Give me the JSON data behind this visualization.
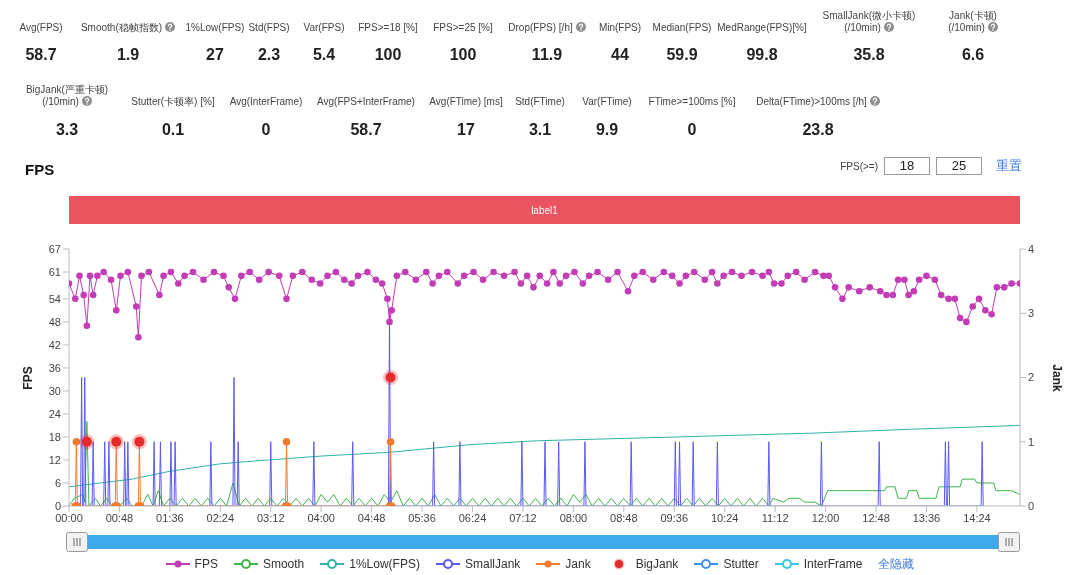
{
  "chart_data": [
    {
      "type": "other",
      "categories": [
        "Avg(FPS)",
        "Smooth(稳帧指数)",
        "1%Low(FPS)",
        "Std(FPS)",
        "Var(FPS)",
        "FPS>=18 [%]",
        "FPS>=25 [%]",
        "Drop(FPS) [/h]",
        "Min(FPS)",
        "Median(FPS)",
        "MedRange(FPS)[%]",
        "SmallJank(微小卡顿)\n(/10min)",
        "Jank(卡顿)\n(/10min)",
        "BigJank(严重卡顿)\n(/10min)",
        "Stutter(卡顿率) [%]",
        "Avg(InterFrame)",
        "Avg(FPS+InterFrame)",
        "Avg(FTime) [ms]",
        "Std(FTime)",
        "Var(FTime)",
        "FTime>=100ms [%]",
        "Delta(FTime)>100ms [/h]"
      ],
      "values": [
        58.7,
        1.9,
        27,
        2.3,
        5.4,
        100,
        100,
        11.9,
        44,
        59.9,
        99.8,
        35.8,
        6.6,
        3.3,
        0.1,
        0,
        58.7,
        17,
        3.1,
        9.9,
        0,
        23.8
      ],
      "data_labels": true
    },
    {
      "type": "line",
      "title": "FPS",
      "ylabel": "FPS",
      "y2label": "Jank",
      "xlim": [
        0,
        905
      ],
      "xticks": [
        {
          "value": 0,
          "label": "00:00"
        },
        {
          "value": 48,
          "label": "00:48"
        },
        {
          "value": 96,
          "label": "01:36"
        },
        {
          "value": 144,
          "label": "02:24"
        },
        {
          "value": 192,
          "label": "03:12"
        },
        {
          "value": 240,
          "label": "04:00"
        },
        {
          "value": 288,
          "label": "04:48"
        },
        {
          "value": 336,
          "label": "05:36"
        },
        {
          "value": 384,
          "label": "06:24"
        },
        {
          "value": 432,
          "label": "07:12"
        },
        {
          "value": 480,
          "label": "08:00"
        },
        {
          "value": 528,
          "label": "08:48"
        },
        {
          "value": 576,
          "label": "09:36"
        },
        {
          "value": 624,
          "label": "10:24"
        },
        {
          "value": 672,
          "label": "11:12"
        },
        {
          "value": 720,
          "label": "12:00"
        },
        {
          "value": 768,
          "label": "12:48"
        },
        {
          "value": 816,
          "label": "13:36"
        },
        {
          "value": 864,
          "label": "14:24"
        }
      ],
      "ylim": [
        0,
        67
      ],
      "yticks": [
        0,
        6,
        12,
        18,
        24,
        30,
        36,
        42,
        48,
        54,
        61,
        67
      ],
      "y2lim": [
        0,
        4
      ],
      "y2ticks": [
        0,
        1,
        2,
        3,
        4
      ],
      "legend": "bottom",
      "annotations": [
        "FPS(>=)",
        "18",
        "25",
        "重置",
        "label1",
        "全隐藏"
      ],
      "series": [
        {
          "name": "FPS",
          "color": "#c23cb6",
          "marker": "circle",
          "x": [
            0,
            6,
            10,
            14,
            17,
            20,
            23,
            27,
            33,
            40,
            45,
            49,
            56,
            64,
            66,
            69,
            76,
            86,
            90,
            97,
            104,
            110,
            118,
            128,
            138,
            147,
            152,
            158,
            164,
            172,
            181,
            190,
            200,
            207,
            213,
            222,
            231,
            239,
            246,
            254,
            262,
            269,
            275,
            284,
            292,
            298,
            303,
            305,
            307,
            312,
            320,
            330,
            340,
            346,
            352,
            360,
            370,
            376,
            385,
            394,
            404,
            414,
            424,
            430,
            436,
            442,
            448,
            455,
            461,
            467,
            473,
            481,
            489,
            495,
            503,
            513,
            522,
            532,
            538,
            546,
            556,
            566,
            574,
            581,
            587,
            595,
            605,
            612,
            617,
            623,
            631,
            640,
            650,
            660,
            666,
            671,
            678,
            684,
            692,
            700,
            710,
            718,
            723,
            729,
            736,
            742,
            752,
            762,
            772,
            778,
            784,
            789,
            795,
            799,
            804,
            809,
            816,
            824,
            830,
            837,
            843,
            848,
            854,
            860,
            866,
            872,
            878,
            883,
            890,
            897,
            905
          ],
          "values": [
            58,
            54,
            60,
            55,
            47,
            60,
            55,
            60,
            61,
            59,
            51,
            60,
            61,
            52,
            44,
            60,
            61,
            55,
            60,
            61,
            58,
            60,
            61,
            59,
            61,
            60,
            57,
            54,
            60,
            61,
            59,
            61,
            60,
            54,
            60,
            61,
            59,
            58,
            60,
            61,
            59,
            58,
            60,
            61,
            59,
            58,
            54,
            48,
            51,
            60,
            61,
            59,
            61,
            58,
            60,
            61,
            58,
            60,
            61,
            59,
            61,
            60,
            61,
            58,
            60,
            57,
            60,
            58,
            61,
            58,
            60,
            61,
            58,
            60,
            61,
            59,
            61,
            56,
            60,
            61,
            59,
            61,
            60,
            58,
            60,
            61,
            59,
            61,
            58,
            60,
            61,
            60,
            61,
            60,
            61,
            58,
            58,
            60,
            61,
            59,
            61,
            60,
            60,
            57,
            54,
            57,
            56,
            57,
            56,
            55,
            55,
            59,
            59,
            55,
            56,
            59,
            60,
            59,
            55,
            54,
            54,
            49,
            48,
            52,
            54,
            51,
            50,
            57,
            57,
            58,
            58
          ]
        },
        {
          "name": "Smooth",
          "color": "#3db54b",
          "x": [
            0,
            5,
            13,
            15,
            17,
            19,
            25,
            30,
            36,
            41,
            45,
            48,
            55,
            60,
            66,
            69,
            75,
            80,
            85,
            90,
            96,
            102,
            108,
            114,
            120,
            126,
            132,
            138,
            144,
            150,
            156,
            162,
            168,
            174,
            180,
            186,
            192,
            198,
            204,
            210,
            216,
            222,
            228,
            234,
            240,
            246,
            252,
            258,
            264,
            270,
            276,
            282,
            288,
            294,
            300,
            306,
            312,
            318,
            324,
            330,
            336,
            342,
            348,
            354,
            360,
            366,
            372,
            378,
            384,
            390,
            396,
            402,
            408,
            414,
            420,
            426,
            432,
            438,
            444,
            450,
            456,
            462,
            468,
            474,
            480,
            486,
            492,
            498,
            504,
            510,
            516,
            522,
            528,
            534,
            540,
            546,
            552,
            558,
            564,
            570,
            576,
            582,
            588,
            594,
            600,
            606,
            612,
            618,
            624,
            630,
            636,
            642,
            648,
            654,
            660,
            666,
            670,
            680,
            685,
            695,
            700,
            710,
            716,
            722,
            750,
            776,
            778,
            786,
            789,
            797,
            799,
            807,
            809,
            825,
            828,
            848,
            850,
            862,
            864,
            880,
            882,
            897,
            905
          ],
          "values": [
            0,
            2,
            3,
            1,
            22,
            0,
            2,
            0,
            2,
            0,
            null,
            0,
            2,
            0,
            null,
            0,
            3,
            0,
            4,
            0,
            2,
            0,
            2,
            0,
            2,
            0,
            2,
            0,
            2,
            0,
            6,
            0,
            2,
            0,
            2,
            0,
            2,
            0,
            2,
            0,
            2,
            0,
            2,
            0,
            3,
            1,
            3,
            0,
            2,
            0,
            2,
            0,
            2,
            0,
            3,
            1,
            4,
            0,
            2,
            0,
            2,
            0,
            3,
            0,
            2,
            0,
            2,
            0,
            2,
            0,
            2,
            0,
            2,
            0,
            2,
            0,
            2,
            0,
            2,
            0,
            2,
            0,
            2,
            0,
            3,
            1,
            3,
            0,
            2,
            0,
            2,
            0,
            2,
            0,
            2,
            0,
            2,
            0,
            2,
            0,
            2,
            0,
            2,
            0,
            2,
            0,
            2,
            0,
            2,
            0,
            2,
            0,
            2,
            0,
            2,
            0,
            2,
            1,
            2,
            2,
            1,
            1,
            0,
            4,
            4,
            4,
            5,
            5,
            2,
            2,
            4,
            4,
            2,
            2,
            5,
            5,
            7,
            7,
            6,
            6,
            4,
            4,
            3
          ]
        },
        {
          "name": "1%Low(FPS)",
          "color": "#2fb3a6",
          "x": [
            0,
            30,
            60,
            95,
            144,
            190,
            239,
            305,
            382,
            445,
            578,
            708,
            800,
            905
          ],
          "values": [
            5,
            6,
            7,
            9,
            11,
            12,
            13,
            14,
            16,
            17,
            18,
            19,
            20,
            21
          ]
        },
        {
          "name": "SmallJank",
          "color": "#5a5af2",
          "axis": "y2",
          "x": [
            11,
            12,
            13,
            14,
            15,
            16,
            22,
            23,
            24,
            33,
            34,
            35,
            37,
            38,
            39,
            52,
            53,
            54,
            55,
            56,
            57,
            80,
            81,
            82,
            86,
            87,
            88,
            96,
            97,
            98,
            100,
            101,
            102,
            134,
            135,
            136,
            156,
            157,
            158,
            160,
            161,
            162,
            191,
            192,
            193,
            232,
            233,
            234,
            269,
            270,
            271,
            304,
            305,
            306,
            346,
            347,
            348,
            371,
            372,
            373,
            430,
            431,
            432,
            452,
            453,
            454,
            465,
            466,
            467,
            490,
            491,
            492,
            534,
            535,
            536,
            576,
            577,
            578,
            580,
            581,
            582,
            593,
            594,
            595,
            616,
            617,
            618,
            665,
            666,
            667,
            715,
            716,
            717,
            770,
            771,
            772,
            833,
            834,
            835,
            836,
            837,
            838,
            868,
            869,
            870
          ],
          "values": [
            0,
            2,
            0,
            0,
            2,
            0,
            0,
            1,
            0,
            0,
            1,
            0,
            0,
            1,
            0,
            0,
            1,
            0,
            0,
            1,
            0,
            0,
            1,
            0,
            0,
            1,
            0,
            0,
            1,
            0,
            0,
            1,
            0,
            0,
            1,
            0,
            0,
            2,
            0,
            0,
            1,
            0,
            0,
            1,
            0,
            0,
            1,
            0,
            0,
            1,
            0,
            0,
            3,
            0,
            0,
            1,
            0,
            0,
            1,
            0,
            0,
            1,
            0,
            0,
            1,
            0,
            0,
            1,
            0,
            0,
            1,
            0,
            0,
            1,
            0,
            0,
            1,
            0,
            0,
            1,
            0,
            0,
            1,
            0,
            0,
            1,
            0,
            0,
            1,
            0,
            0,
            1,
            0,
            0,
            1,
            0,
            0,
            1,
            0,
            0,
            1,
            0,
            0,
            1,
            0
          ]
        },
        {
          "name": "Jank",
          "color": "#f47a2e",
          "axis": "y2",
          "marker": "circle",
          "x": [
            6,
            7,
            8,
            44,
            45,
            46,
            66,
            67,
            68,
            206,
            207,
            208,
            305,
            306,
            307
          ],
          "values": [
            0,
            1,
            0,
            0,
            1,
            0,
            0,
            1,
            0,
            0,
            1,
            0,
            0,
            1,
            0
          ]
        },
        {
          "name": "BigJank",
          "type": "scatter",
          "color": "#e52b2b",
          "axis": "y2",
          "marker": "circle",
          "x": [
            17,
            45,
            67,
            306
          ],
          "values": [
            1,
            1,
            1,
            2
          ]
        },
        {
          "name": "Stutter",
          "color": "#3d8ff0",
          "axis": "y2"
        },
        {
          "name": "InterFrame",
          "color": "#38c7e4",
          "axis": "y2"
        }
      ]
    }
  ]
}
